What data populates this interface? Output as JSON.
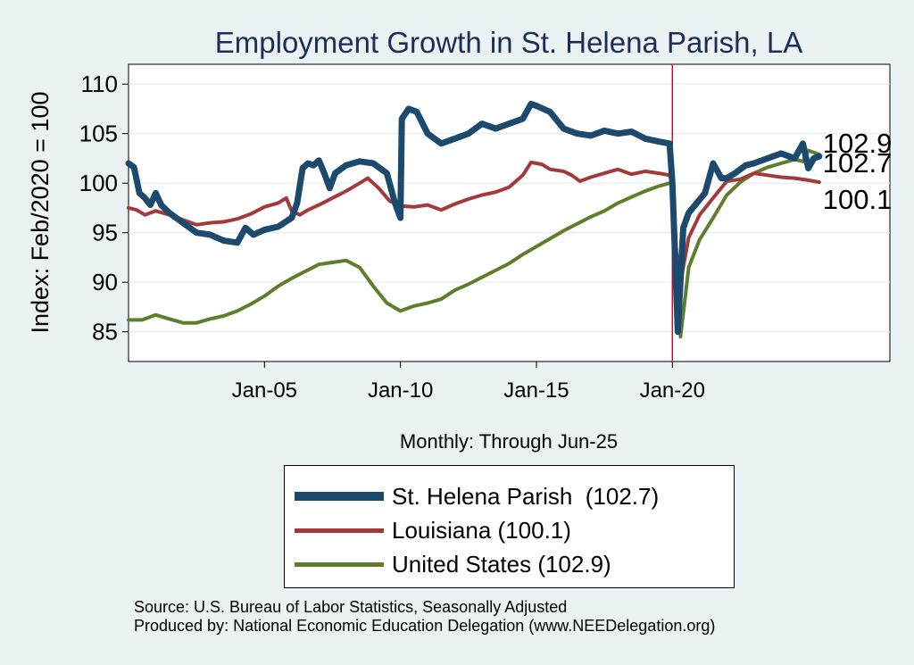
{
  "chart_data": {
    "type": "line",
    "title": "Employment Growth in St. Helena Parish, LA",
    "xlabel": "Monthly: Through Jun-25",
    "ylabel": "Index: Feb/2020 = 100",
    "ylim": [
      82,
      112
    ],
    "yticks": [
      85,
      90,
      95,
      100,
      105,
      110
    ],
    "xlim": [
      2000.0,
      2028.0
    ],
    "xticks": [
      {
        "x": 2005.0,
        "label": "Jan-05"
      },
      {
        "x": 2010.0,
        "label": "Jan-10"
      },
      {
        "x": 2015.0,
        "label": "Jan-15"
      },
      {
        "x": 2020.0,
        "label": "Jan-20"
      }
    ],
    "reference_line": {
      "x": 2020.0,
      "color": "#c8102e"
    },
    "grid": true,
    "legend": "bottom",
    "series": [
      {
        "name": "St. Helena Parish  (102.7)",
        "color": "#1b4a6e",
        "end_label": "102.7",
        "points": [
          [
            2000.0,
            102.0
          ],
          [
            2000.2,
            101.6
          ],
          [
            2000.4,
            99.0
          ],
          [
            2000.6,
            98.5
          ],
          [
            2000.8,
            97.8
          ],
          [
            2001.0,
            99.0
          ],
          [
            2001.2,
            97.8
          ],
          [
            2001.5,
            97.0
          ],
          [
            2002.0,
            96.0
          ],
          [
            2002.5,
            95.0
          ],
          [
            2003.0,
            94.8
          ],
          [
            2003.5,
            94.2
          ],
          [
            2004.0,
            94.0
          ],
          [
            2004.3,
            95.5
          ],
          [
            2004.6,
            94.8
          ],
          [
            2005.0,
            95.3
          ],
          [
            2005.5,
            95.6
          ],
          [
            2006.0,
            96.5
          ],
          [
            2006.2,
            98.0
          ],
          [
            2006.4,
            101.5
          ],
          [
            2006.6,
            102.0
          ],
          [
            2006.8,
            101.8
          ],
          [
            2007.0,
            102.3
          ],
          [
            2007.2,
            101.0
          ],
          [
            2007.4,
            99.5
          ],
          [
            2007.6,
            101.0
          ],
          [
            2008.0,
            101.8
          ],
          [
            2008.5,
            102.2
          ],
          [
            2009.0,
            102.0
          ],
          [
            2009.5,
            101.0
          ],
          [
            2009.8,
            98.0
          ],
          [
            2010.0,
            96.5
          ],
          [
            2010.05,
            106.5
          ],
          [
            2010.3,
            107.5
          ],
          [
            2010.6,
            107.2
          ],
          [
            2011.0,
            105.0
          ],
          [
            2011.5,
            104.0
          ],
          [
            2012.0,
            104.5
          ],
          [
            2012.5,
            105.0
          ],
          [
            2013.0,
            106.0
          ],
          [
            2013.5,
            105.5
          ],
          [
            2014.0,
            106.0
          ],
          [
            2014.5,
            106.5
          ],
          [
            2014.8,
            108.0
          ],
          [
            2015.0,
            107.8
          ],
          [
            2015.5,
            107.2
          ],
          [
            2016.0,
            105.5
          ],
          [
            2016.5,
            105.0
          ],
          [
            2017.0,
            104.8
          ],
          [
            2017.5,
            105.3
          ],
          [
            2018.0,
            105.0
          ],
          [
            2018.5,
            105.2
          ],
          [
            2019.0,
            104.5
          ],
          [
            2019.5,
            104.2
          ],
          [
            2019.9,
            104.0
          ],
          [
            2020.0,
            100.0
          ],
          [
            2020.2,
            85.0
          ],
          [
            2020.4,
            95.5
          ],
          [
            2020.6,
            97.0
          ],
          [
            2020.9,
            98.0
          ],
          [
            2021.2,
            99.0
          ],
          [
            2021.5,
            102.0
          ],
          [
            2021.8,
            100.5
          ],
          [
            2022.0,
            100.5
          ],
          [
            2022.3,
            101.0
          ],
          [
            2022.7,
            101.8
          ],
          [
            2023.0,
            102.0
          ],
          [
            2023.5,
            102.5
          ],
          [
            2024.0,
            103.0
          ],
          [
            2024.5,
            102.5
          ],
          [
            2024.8,
            104.0
          ],
          [
            2025.0,
            101.5
          ],
          [
            2025.2,
            102.5
          ],
          [
            2025.4,
            102.7
          ]
        ]
      },
      {
        "name": "Louisiana (100.1)",
        "color": "#a33a3a",
        "end_label": "100.1",
        "points": [
          [
            2000.0,
            97.5
          ],
          [
            2000.3,
            97.3
          ],
          [
            2000.6,
            96.8
          ],
          [
            2001.0,
            97.2
          ],
          [
            2001.5,
            96.8
          ],
          [
            2002.0,
            96.3
          ],
          [
            2002.5,
            95.8
          ],
          [
            2003.0,
            96.0
          ],
          [
            2003.5,
            96.1
          ],
          [
            2004.0,
            96.4
          ],
          [
            2004.5,
            96.9
          ],
          [
            2005.0,
            97.6
          ],
          [
            2005.5,
            98.0
          ],
          [
            2005.8,
            98.5
          ],
          [
            2006.0,
            97.2
          ],
          [
            2006.3,
            96.8
          ],
          [
            2006.6,
            97.3
          ],
          [
            2007.0,
            97.8
          ],
          [
            2007.5,
            98.5
          ],
          [
            2008.0,
            99.2
          ],
          [
            2008.5,
            100.0
          ],
          [
            2008.8,
            100.5
          ],
          [
            2009.2,
            99.5
          ],
          [
            2009.6,
            98.2
          ],
          [
            2010.0,
            97.7
          ],
          [
            2010.5,
            97.6
          ],
          [
            2011.0,
            97.8
          ],
          [
            2011.5,
            97.3
          ],
          [
            2012.0,
            97.9
          ],
          [
            2012.5,
            98.4
          ],
          [
            2013.0,
            98.8
          ],
          [
            2013.5,
            99.1
          ],
          [
            2014.0,
            99.6
          ],
          [
            2014.5,
            100.8
          ],
          [
            2014.8,
            102.1
          ],
          [
            2015.2,
            101.9
          ],
          [
            2015.5,
            101.4
          ],
          [
            2016.0,
            101.2
          ],
          [
            2016.3,
            100.8
          ],
          [
            2016.6,
            100.2
          ],
          [
            2017.0,
            100.6
          ],
          [
            2017.5,
            101.0
          ],
          [
            2018.0,
            101.4
          ],
          [
            2018.5,
            100.9
          ],
          [
            2019.0,
            101.2
          ],
          [
            2019.5,
            101.0
          ],
          [
            2019.9,
            100.8
          ],
          [
            2020.0,
            100.0
          ],
          [
            2020.15,
            93.0
          ],
          [
            2020.3,
            90.0
          ],
          [
            2020.6,
            94.5
          ],
          [
            2021.0,
            96.8
          ],
          [
            2021.5,
            98.5
          ],
          [
            2022.0,
            100.2
          ],
          [
            2022.5,
            100.4
          ],
          [
            2023.0,
            101.0
          ],
          [
            2023.5,
            100.8
          ],
          [
            2024.0,
            100.6
          ],
          [
            2024.5,
            100.5
          ],
          [
            2025.0,
            100.3
          ],
          [
            2025.4,
            100.1
          ]
        ]
      },
      {
        "name": "United States (102.9)",
        "color": "#5f7e2b",
        "end_label": "102.9",
        "points": [
          [
            2000.0,
            86.2
          ],
          [
            2000.5,
            86.2
          ],
          [
            2001.0,
            86.7
          ],
          [
            2001.5,
            86.3
          ],
          [
            2002.0,
            85.9
          ],
          [
            2002.5,
            85.9
          ],
          [
            2003.0,
            86.3
          ],
          [
            2003.5,
            86.6
          ],
          [
            2004.0,
            87.1
          ],
          [
            2004.5,
            87.8
          ],
          [
            2005.0,
            88.6
          ],
          [
            2005.5,
            89.6
          ],
          [
            2006.0,
            90.4
          ],
          [
            2006.5,
            91.1
          ],
          [
            2007.0,
            91.8
          ],
          [
            2007.5,
            92.0
          ],
          [
            2008.0,
            92.2
          ],
          [
            2008.5,
            91.5
          ],
          [
            2009.0,
            89.6
          ],
          [
            2009.5,
            87.9
          ],
          [
            2010.0,
            87.1
          ],
          [
            2010.5,
            87.6
          ],
          [
            2011.0,
            87.9
          ],
          [
            2011.5,
            88.3
          ],
          [
            2012.0,
            89.2
          ],
          [
            2012.5,
            89.8
          ],
          [
            2013.0,
            90.5
          ],
          [
            2013.5,
            91.2
          ],
          [
            2014.0,
            91.9
          ],
          [
            2014.5,
            92.8
          ],
          [
            2015.0,
            93.6
          ],
          [
            2015.5,
            94.4
          ],
          [
            2016.0,
            95.2
          ],
          [
            2016.5,
            95.9
          ],
          [
            2017.0,
            96.6
          ],
          [
            2017.5,
            97.2
          ],
          [
            2018.0,
            98.0
          ],
          [
            2018.5,
            98.6
          ],
          [
            2019.0,
            99.2
          ],
          [
            2019.5,
            99.7
          ],
          [
            2019.9,
            100.0
          ],
          [
            2020.0,
            99.8
          ],
          [
            2020.2,
            89.0
          ],
          [
            2020.3,
            84.5
          ],
          [
            2020.6,
            91.5
          ],
          [
            2021.0,
            94.3
          ],
          [
            2021.5,
            96.5
          ],
          [
            2022.0,
            98.8
          ],
          [
            2022.5,
            100.1
          ],
          [
            2023.0,
            101.0
          ],
          [
            2023.5,
            101.6
          ],
          [
            2024.0,
            102.0
          ],
          [
            2024.5,
            102.4
          ],
          [
            2024.8,
            102.2
          ],
          [
            2025.0,
            103.3
          ],
          [
            2025.4,
            102.9
          ]
        ]
      }
    ],
    "source_lines": [
      "Source: U.S. Bureau of Labor Statistics, Seasonally Adjusted",
      "Produced by: National Economic Education Delegation (www.NEEDelegation.org)"
    ]
  }
}
